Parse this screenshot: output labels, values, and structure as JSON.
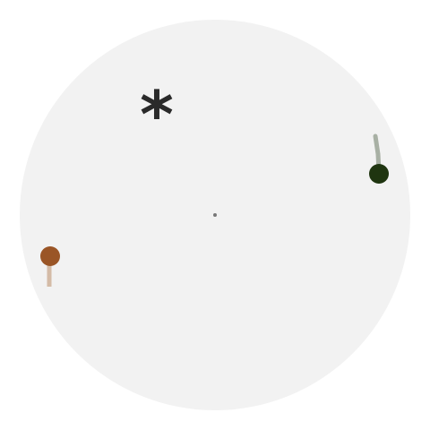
{
  "arena": {
    "background_color": "#f2f2f2",
    "center_marker_color": "#777777"
  },
  "objective": {
    "symbol": "*",
    "color": "#2a2a2a"
  },
  "players": [
    {
      "id": "green",
      "color": "#1f3510",
      "trail_color": "#a8b0a4"
    },
    {
      "id": "brown",
      "color": "#9a5526",
      "trail_color": "#d4bba6"
    }
  ]
}
